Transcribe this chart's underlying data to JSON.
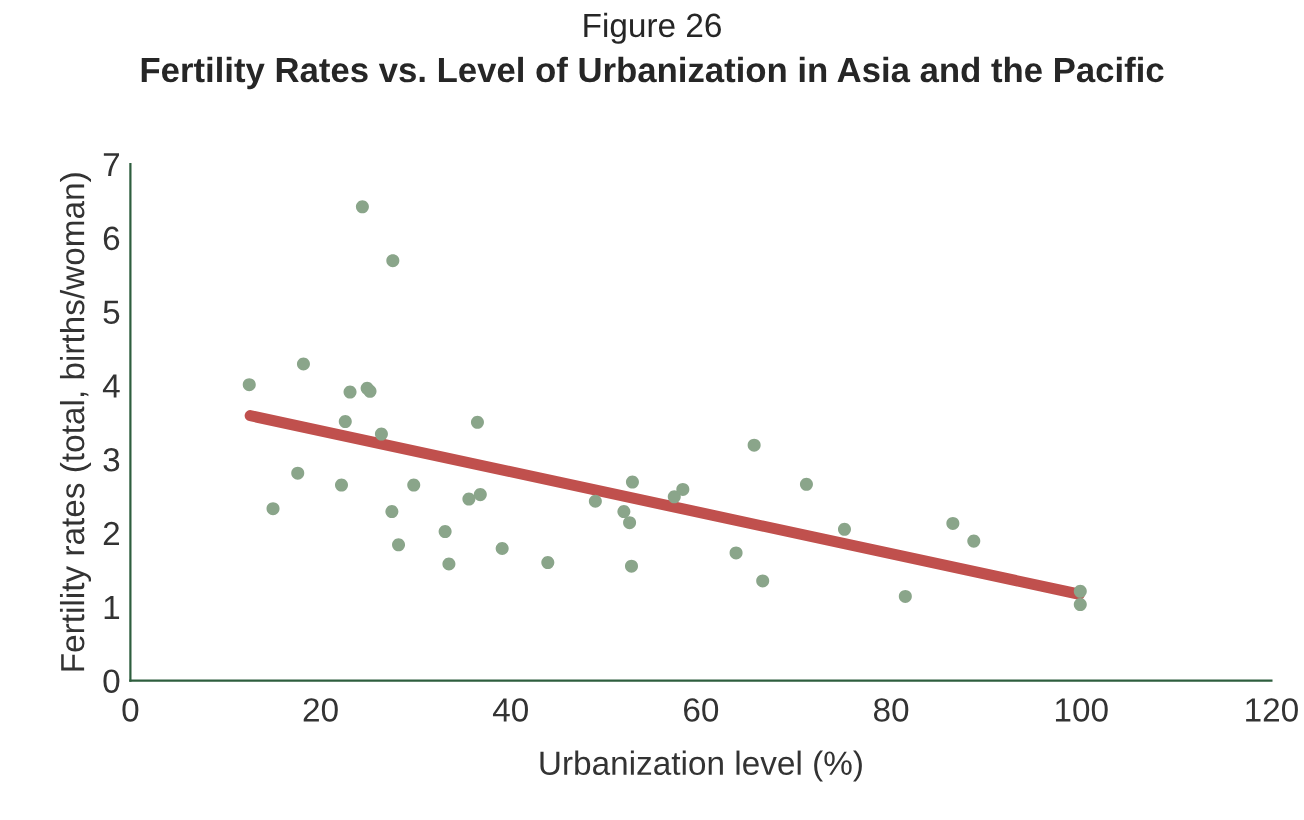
{
  "chart_data": {
    "type": "scatter",
    "subtitle": "Figure 26",
    "title": "Fertility Rates vs. Level of Urbanization in Asia and the Pacific",
    "xlabel": "Urbanization level (%)",
    "ylabel": "Fertility rates (total, births/woman)",
    "xlim": [
      0,
      120
    ],
    "xticks": [
      0,
      20,
      40,
      60,
      80,
      100,
      120
    ],
    "ylim": [
      0,
      7
    ],
    "yticks": [
      0,
      1,
      2,
      3,
      4,
      5,
      6,
      7
    ],
    "grid": false,
    "series": [
      {
        "marker": "circle",
        "color": "#8aa58a",
        "x": [
          12.5,
          15.0,
          17.6,
          18.2,
          22.2,
          22.6,
          23.1,
          24.4,
          24.9,
          25.2,
          26.4,
          27.5,
          27.6,
          28.2,
          29.8,
          33.1,
          33.5,
          35.6,
          36.5,
          36.8,
          39.1,
          43.9,
          48.9,
          51.9,
          52.5,
          52.8,
          52.7,
          57.2,
          58.1,
          63.7,
          65.6,
          66.5,
          71.1,
          75.1,
          81.5,
          86.5,
          88.7,
          99.9,
          99.9
        ],
        "values": [
          4.01,
          2.33,
          2.81,
          4.29,
          2.65,
          3.51,
          3.91,
          6.42,
          3.96,
          3.92,
          3.34,
          2.29,
          5.69,
          1.84,
          2.65,
          2.02,
          1.58,
          2.46,
          3.5,
          2.52,
          1.79,
          1.6,
          2.43,
          2.29,
          2.14,
          2.69,
          1.55,
          2.49,
          2.59,
          1.73,
          3.19,
          1.35,
          2.66,
          2.05,
          1.14,
          2.13,
          1.89,
          1.21,
          1.03
        ]
      },
      {
        "type": "line",
        "marker": "none",
        "color": "#c0504d",
        "x": [
          12.6,
          99.8
        ],
        "values": [
          3.59,
          1.17
        ]
      }
    ]
  }
}
